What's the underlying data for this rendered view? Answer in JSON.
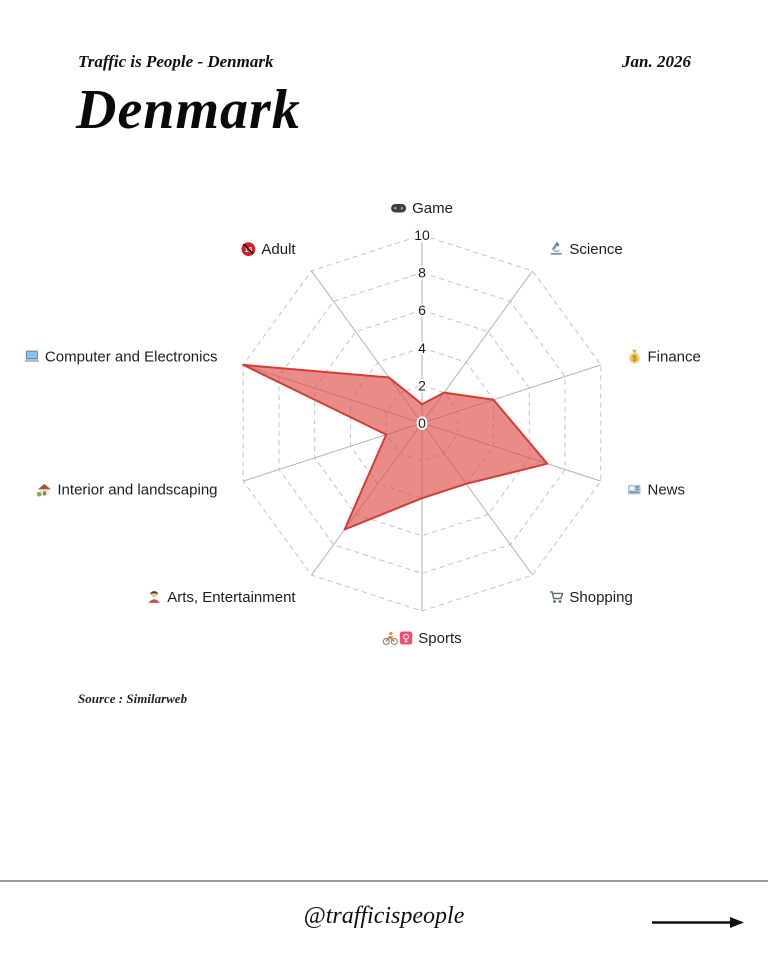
{
  "header": {
    "brand": "Traffic is People - Denmark",
    "date": "Jan. 2026"
  },
  "title": "Denmark",
  "chart_data": {
    "type": "radar",
    "categories": [
      "Game",
      "Science",
      "Finance",
      "News",
      "Shopping",
      "Sports",
      "Arts, Entertainment",
      "Interior and landscaping",
      "Computer and Electronics",
      "Adult"
    ],
    "category_icons": [
      "🎮",
      "🔬",
      "💰",
      "📰",
      "🛒",
      "🚴‍♀️",
      "🧑‍🎨",
      "🏡",
      "💻",
      "🔞"
    ],
    "icon_names": [
      "game-controller-icon",
      "microscope-icon",
      "money-bag-icon",
      "newspaper-icon",
      "shopping-cart-icon",
      "woman-biking-icon",
      "artist-icon",
      "house-with-garden-icon",
      "laptop-icon",
      "no-under-18-icon"
    ],
    "series": [
      {
        "name": "Denmark",
        "values": [
          1,
          2,
          4,
          7,
          4,
          4,
          7,
          2,
          10,
          3
        ]
      }
    ],
    "ylim": [
      0,
      10
    ],
    "ticks": [
      0,
      2,
      4,
      6,
      8,
      10
    ],
    "start_angle_deg": 90,
    "direction": "clockwise",
    "grid": "dashed-rings-solid-spokes",
    "legend": "none",
    "colors": {
      "fill": "#dd4f48",
      "fill_opacity": 0.65,
      "stroke": "#d43c35",
      "grid": "#c3c3c3",
      "spoke": "#b2b2b2",
      "tick_text": "#1c1c1c",
      "label_text": "#1d1d1d"
    }
  },
  "source": "Source : Similarweb",
  "footer": {
    "handle": "@trafficispeople",
    "arrow_icon": "→"
  }
}
